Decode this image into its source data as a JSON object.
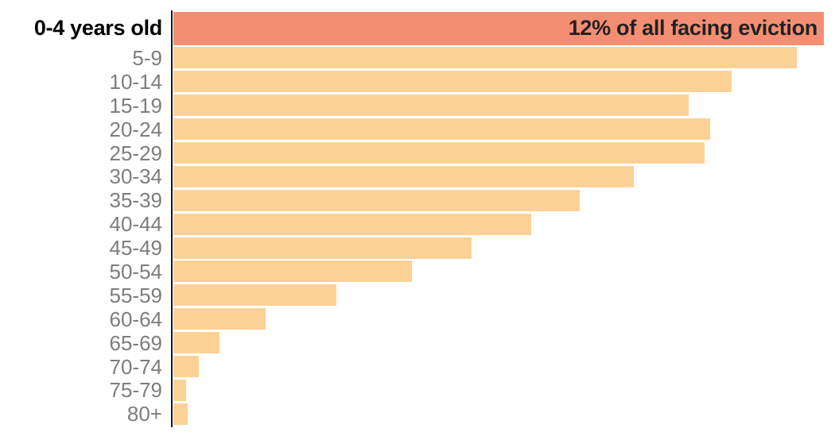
{
  "chart_data": {
    "type": "bar",
    "orientation": "horizontal",
    "title": "",
    "xlabel": "",
    "ylabel": "",
    "categories": [
      "0-4 years old",
      "5-9",
      "10-14",
      "15-19",
      "20-24",
      "25-29",
      "30-34",
      "35-39",
      "40-44",
      "45-49",
      "50-54",
      "55-59",
      "60-64",
      "65-69",
      "70-74",
      "75-79",
      "80+"
    ],
    "values": [
      12,
      11.5,
      10.3,
      9.5,
      9.9,
      9.8,
      8.5,
      7.5,
      6.6,
      5.5,
      4.4,
      3.0,
      1.7,
      0.85,
      0.47,
      0.23,
      0.27
    ],
    "value_unit": "percent of all facing eviction",
    "xlim": [
      0,
      12.2
    ],
    "grid": false,
    "legend": null,
    "highlight_index": 0,
    "annotation": {
      "row": 0,
      "text": "12% of all facing eviction"
    },
    "colors": {
      "highlight_bar": "#F48E72",
      "bar": "#FCD196",
      "axis_line": "#1A1A1A",
      "category_label": "#7D7D7D",
      "highlight_label": "#000000",
      "annotation_text": "#212121",
      "background": "#FFFFFF"
    }
  }
}
